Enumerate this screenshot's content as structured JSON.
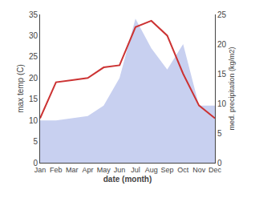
{
  "chart_data": {
    "type": "line",
    "categories": [
      "Jan",
      "Feb",
      "Mar",
      "Apr",
      "May",
      "Jun",
      "Jul",
      "Aug",
      "Sep",
      "Oct",
      "Nov",
      "Dec"
    ],
    "series": [
      {
        "type": "area",
        "color": "#c8d0f0",
        "values": [
          10.0,
          10.0,
          10.5,
          11.0,
          13.5,
          20.0,
          34.0,
          27.0,
          22.0,
          28.0,
          13.5,
          13.5
        ]
      },
      {
        "type": "line",
        "color": "#cc3333",
        "values": [
          10.5,
          19.0,
          19.5,
          20.0,
          22.5,
          23.0,
          32.0,
          33.5,
          30.0,
          21.0,
          13.5,
          10.5
        ]
      }
    ],
    "xlabel": "date (month)",
    "ylabel": "max temp (C)",
    "y2label": "med. precipitation (kg/m2)",
    "ylim": [
      0,
      35
    ],
    "yticks": [
      0,
      5,
      10,
      15,
      20,
      25,
      30,
      35
    ],
    "y2lim": [
      0,
      25
    ],
    "y2ticks": [
      0,
      5,
      10,
      15,
      20,
      25
    ],
    "grid": false
  }
}
